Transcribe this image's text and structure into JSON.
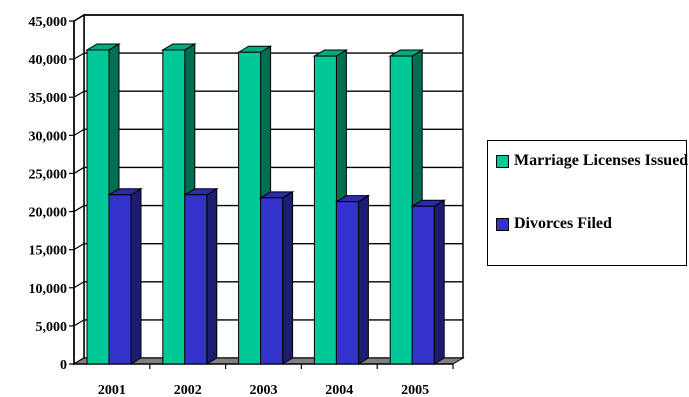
{
  "colors": {
    "marriage": "#00C896",
    "divorce": "#3333CC"
  },
  "chart_data": {
    "type": "bar",
    "categories": [
      "2001",
      "2002",
      "2003",
      "2004",
      "2005"
    ],
    "series": [
      {
        "name": "Marriage Licenses Issued",
        "values": [
          41200,
          41200,
          40900,
          40400,
          40400
        ]
      },
      {
        "name": "Divorces Filed",
        "values": [
          22200,
          22200,
          21800,
          21300,
          20700
        ]
      }
    ],
    "ylim": [
      0,
      45000
    ],
    "yticks": [
      "0",
      "5,000",
      "10,000",
      "15,000",
      "20,000",
      "25,000",
      "30,000",
      "35,000",
      "40,000",
      "45,000"
    ],
    "grid": true,
    "legend": "right",
    "style": "3d-column"
  }
}
